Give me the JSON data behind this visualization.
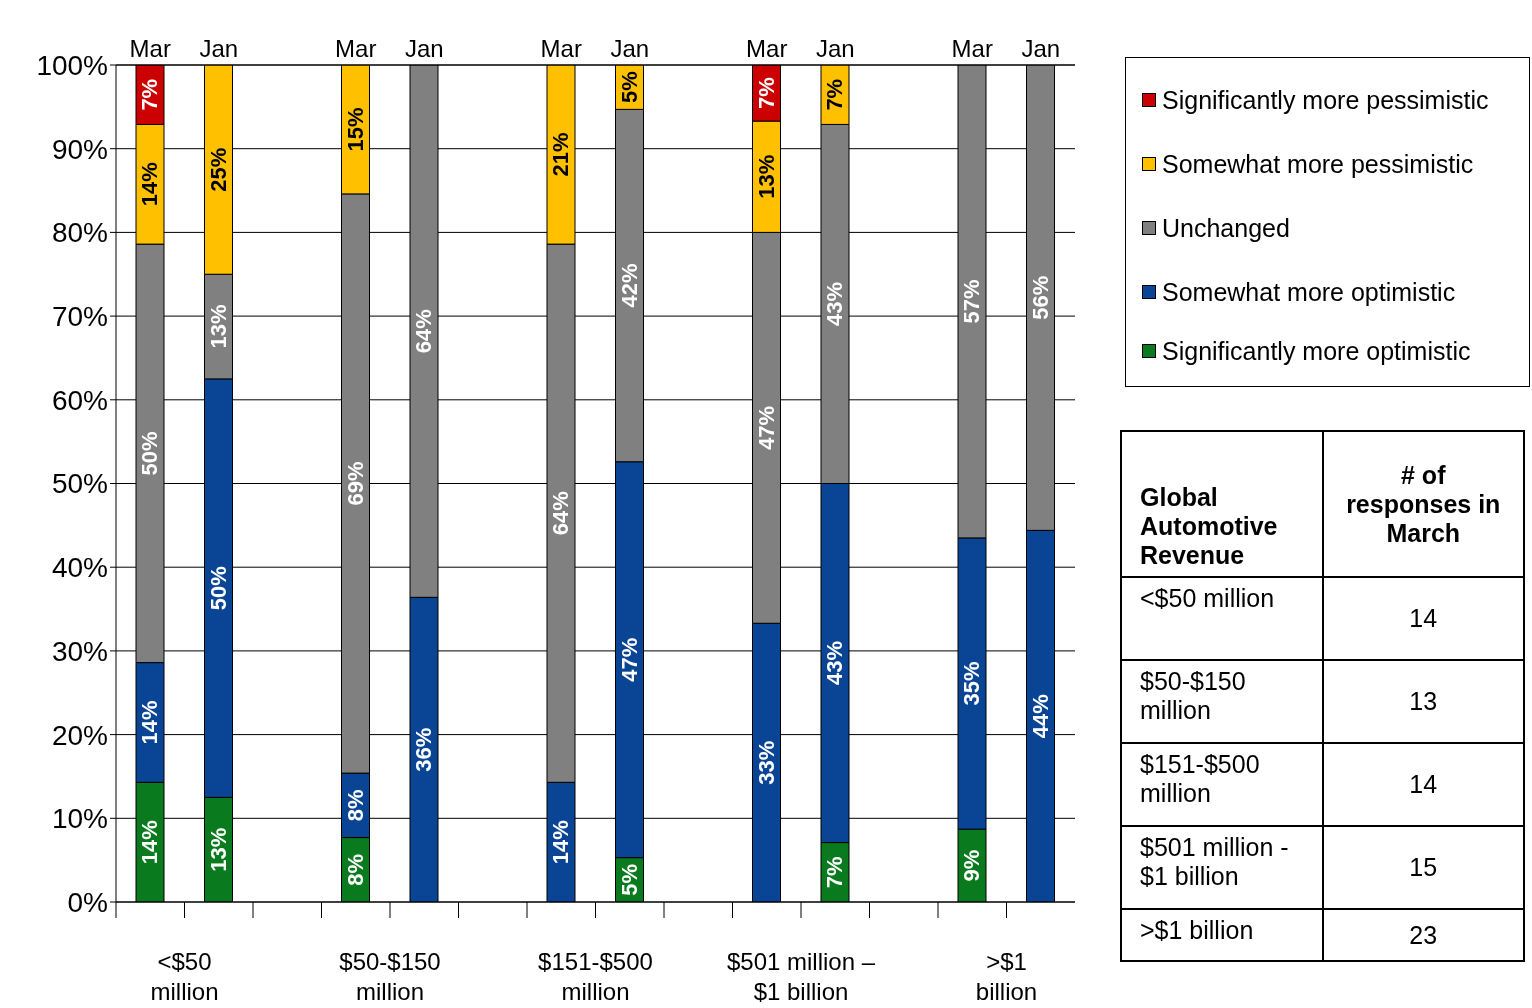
{
  "chart_data": [
    {
      "type": "bar",
      "stacked": true,
      "categories": [
        "Mar",
        "Jan",
        null,
        "Mar",
        "Jan",
        null,
        "Mar",
        "Jan",
        null,
        "Mar",
        "Jan",
        null,
        "Mar",
        "Jan"
      ],
      "series": [
        {
          "name": "Significantly more optimistic",
          "color": "#0a7a1e",
          "values": [
            14.3,
            12.5,
            null,
            7.7,
            null,
            null,
            null,
            5.3,
            null,
            null,
            7.1,
            null,
            8.7,
            null
          ],
          "value_labels": [
            "14%",
            "13%",
            null,
            "8%",
            null,
            null,
            null,
            "5%",
            null,
            null,
            "7%",
            null,
            "9%",
            null
          ]
        },
        {
          "name": "Somewhat more optimistic",
          "color": "#0a4595",
          "values": [
            14.3,
            50,
            null,
            7.7,
            36.4,
            null,
            14.3,
            47.3,
            null,
            33.3,
            42.9,
            null,
            34.8,
            44.4
          ],
          "value_labels": [
            "14%",
            "50%",
            null,
            "8%",
            "36%",
            null,
            "14%",
            "47%",
            null,
            "33%",
            "43%",
            null,
            "35%",
            "44%"
          ]
        },
        {
          "name": "Unchanged",
          "color": "#808080",
          "values": [
            50,
            12.5,
            null,
            69.2,
            63.6,
            null,
            64.3,
            42.1,
            null,
            46.7,
            42.9,
            null,
            56.5,
            55.6
          ],
          "value_labels": [
            "50%",
            "13%",
            null,
            "69%",
            "64%",
            null,
            "64%",
            "42%",
            null,
            "47%",
            "43%",
            null,
            "57%",
            "56%"
          ]
        },
        {
          "name": "Somewhat more pessimistic",
          "color": "#ffc000",
          "values": [
            14.3,
            25,
            null,
            15.4,
            null,
            null,
            21.4,
            5.3,
            null,
            13.3,
            7.1,
            null,
            null,
            null
          ],
          "value_labels": [
            "14%",
            "25%",
            null,
            "15%",
            null,
            null,
            "21%",
            "5%",
            null,
            "13%",
            "7%",
            null,
            null,
            null
          ]
        },
        {
          "name": "Significantly more pessimistic",
          "color": "#cc0000",
          "values": [
            7.1,
            null,
            null,
            null,
            null,
            null,
            null,
            null,
            null,
            6.7,
            null,
            null,
            null,
            null
          ],
          "value_labels": [
            "7%",
            null,
            null,
            null,
            null,
            null,
            null,
            null,
            null,
            "7%",
            null,
            null,
            null,
            null
          ]
        }
      ],
      "ylim": [
        0,
        100
      ],
      "yticks": [
        {
          "value": 0,
          "label": "0%"
        },
        {
          "value": 10,
          "label": "10%"
        },
        {
          "value": 20,
          "label": "20%"
        },
        {
          "value": 30,
          "label": "30%"
        },
        {
          "value": 40,
          "label": "40%"
        },
        {
          "value": 50,
          "label": "50%"
        },
        {
          "value": 60,
          "label": "60%"
        },
        {
          "value": 70,
          "label": "70%"
        },
        {
          "value": 80,
          "label": "80%"
        },
        {
          "value": 90,
          "label": "90%"
        },
        {
          "value": 100,
          "label": "100%"
        }
      ],
      "grid": "y",
      "legend": "right",
      "annotations": [
        "<$50 million",
        "$50-$150 million",
        "$151-$500 million",
        "$501 million – $1 billion",
        ">$1 billion"
      ]
    },
    {
      "type": "other",
      "annotations": [
        "Global Automotive Revenue",
        "# of responses in March",
        "<$50 million",
        "14",
        "$50-$150 million",
        "13",
        "$151-$500 million",
        "14",
        "$501 million - $1 billion",
        "15",
        ">$1 billion",
        "23"
      ]
    }
  ]
}
